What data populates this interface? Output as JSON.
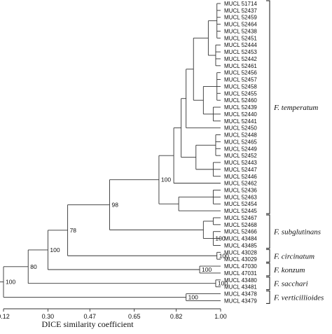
{
  "figure": {
    "axis": {
      "title": "DICE similarity coefficient",
      "ticks": [
        {
          "value": 0.12,
          "label": "0.12"
        },
        {
          "value": 0.3,
          "label": "0.30"
        },
        {
          "value": 0.47,
          "label": "0.47"
        },
        {
          "value": 0.65,
          "label": "0.65"
        },
        {
          "value": 0.82,
          "label": "0.82"
        },
        {
          "value": 1.0,
          "label": "1.00"
        }
      ],
      "range": [
        0.12,
        1.0
      ]
    },
    "leaves": [
      "MUCL 51714",
      "MUCL 52437",
      "MUCL 52459",
      "MUCL 52464",
      "MUCL 52438",
      "MUCL 52451",
      "MUCL 52444",
      "MUCL 52453",
      "MUCL 52442",
      "MUCL 52461",
      "MUCL 52456",
      "MUCL 52457",
      "MUCL 52458",
      "MUCL 52455",
      "MUCL 52460",
      "MUCL 52439",
      "MUCL 52440",
      "MUCL 52441",
      "MUCL 52450",
      "MUCL 52448",
      "MUCL 52465",
      "MUCL 52449",
      "MUCL 52452",
      "MUCL 52443",
      "MUCL 52447",
      "MUCL 52446",
      "MUCL 52462",
      "MUCL 52436",
      "MUCL 52463",
      "MUCL 52454",
      "MUCL 52445",
      "MUCL 52467",
      "MUCL 52468",
      "MUCL 52466",
      "MUCL 43484",
      "MUCL 43485",
      "MUCL 43028",
      "MUCL 43029",
      "MUCL 47030",
      "MUCL 47031",
      "MUCL 43480",
      "MUCL 43481",
      "MUCL 43478",
      "MUCL 43479"
    ],
    "species": [
      {
        "name": "F. temperatum",
        "from": 0,
        "to": 30
      },
      {
        "name": "F. subglutinans",
        "from": 31,
        "to": 35
      },
      {
        "name": "F. circinatum",
        "from": 36,
        "to": 37
      },
      {
        "name": "F. konzum",
        "from": 38,
        "to": 39
      },
      {
        "name": "F. sacchari",
        "from": 40,
        "to": 41
      },
      {
        "name": "F. verticillioides",
        "from": 42,
        "to": 43
      }
    ],
    "bootstrap": [
      {
        "node": "temperatum",
        "label": "100"
      },
      {
        "node": "tem_sub",
        "label": "98"
      },
      {
        "node": "with_circ",
        "label": "78"
      },
      {
        "node": "with_konzum",
        "label": "100"
      },
      {
        "node": "with_sacchari",
        "label": "80"
      },
      {
        "node": "root",
        "label": "100"
      },
      {
        "node": "sub_inner",
        "label": "100"
      },
      {
        "node": "circ",
        "label": "100"
      },
      {
        "node": "konzum",
        "label": "100"
      },
      {
        "node": "sacchari",
        "label": "100"
      },
      {
        "node": "vert",
        "label": "100"
      }
    ],
    "tree": {
      "id": "root",
      "sim": 0.12,
      "children": [
        {
          "id": "with_sacchari",
          "sim": 0.22,
          "children": [
            {
              "id": "with_konzum",
              "sim": 0.3,
              "children": [
                {
                  "id": "with_circ",
                  "sim": 0.38,
                  "children": [
                    {
                      "id": "tem_sub",
                      "sim": 0.55,
                      "children": [
                        {
                          "id": "temperatum",
                          "sim": 0.75,
                          "children": [
                            {
                              "id": "t_a",
                              "sim": 0.81,
                              "children": [
                                {
                                  "id": "t_b",
                                  "sim": 0.84,
                                  "children": [
                                    {
                                      "id": "t_c",
                                      "sim": 0.86,
                                      "children": [
                                        {
                                          "id": "t_d",
                                          "sim": 0.89,
                                          "children": [
                                            {
                                              "id": "t_e",
                                              "sim": 0.95,
                                              "children": [
                                                {
                                                  "id": "t_e1",
                                                  "sim": 0.985,
                                                  "children": [
                                                    {
                                                      "leaf": 0
                                                    },
                                                    {
                                                      "leaf": 1
                                                    },
                                                    {
                                                      "leaf": 2
                                                    },
                                                    {
                                                      "leaf": 3
                                                    },
                                                    {
                                                      "leaf": 4
                                                    },
                                                    {
                                                      "leaf": 5
                                                    }
                                                  ]
                                                },
                                                {
                                                  "id": "t_e2",
                                                  "sim": 0.98,
                                                  "children": [
                                                    {
                                                      "leaf": 6
                                                    },
                                                    {
                                                      "leaf": 7
                                                    },
                                                    {
                                                      "leaf": 8
                                                    },
                                                    {
                                                      "leaf": 9
                                                    }
                                                  ]
                                                }
                                              ]
                                            },
                                            {
                                              "id": "t_f",
                                              "sim": 0.93,
                                              "children": [
                                                {
                                                  "id": "t_f1",
                                                  "sim": 0.985,
                                                  "children": [
                                                    {
                                                      "leaf": 10
                                                    },
                                                    {
                                                      "leaf": 11
                                                    },
                                                    {
                                                      "leaf": 12
                                                    },
                                                    {
                                                      "leaf": 13
                                                    },
                                                    {
                                                      "leaf": 14
                                                    }
                                                  ]
                                                },
                                                {
                                                  "id": "t_f2",
                                                  "sim": 0.97,
                                                  "children": [
                                                    {
                                                      "leaf": 15
                                                    },
                                                    {
                                                      "leaf": 16
                                                    },
                                                    {
                                                      "leaf": 17
                                                    }
                                                  ]
                                                }
                                              ]
                                            }
                                          ]
                                        },
                                        {
                                          "leaf": 18
                                        }
                                      ]
                                    },
                                    {
                                      "id": "t_g",
                                      "sim": 0.9,
                                      "children": [
                                        {
                                          "id": "t_g1",
                                          "sim": 0.98,
                                          "children": [
                                            {
                                              "leaf": 19
                                            },
                                            {
                                              "leaf": 20
                                            },
                                            {
                                              "leaf": 21
                                            },
                                            {
                                              "leaf": 22
                                            }
                                          ]
                                        },
                                        {
                                          "id": "t_g2",
                                          "sim": 0.97,
                                          "children": [
                                            {
                                              "leaf": 23
                                            },
                                            {
                                              "leaf": 24
                                            },
                                            {
                                              "leaf": 25
                                            }
                                          ]
                                        }
                                      ]
                                    }
                                  ]
                                },
                                {
                                  "leaf": 26
                                }
                              ]
                            },
                            {
                              "id": "t_h",
                              "sim": 0.83,
                              "children": [
                                {
                                  "id": "t_h1",
                                  "sim": 0.97,
                                  "children": [
                                    {
                                      "leaf": 27
                                    },
                                    {
                                      "leaf": 28
                                    },
                                    {
                                      "leaf": 29
                                    }
                                  ]
                                },
                                {
                                  "leaf": 30
                                }
                              ]
                            }
                          ]
                        },
                        {
                          "id": "subglutinans",
                          "sim": 0.93,
                          "children": [
                            {
                              "id": "sub_a",
                              "sim": 0.97,
                              "children": [
                                {
                                  "leaf": 31
                                },
                                {
                                  "leaf": 32
                                }
                              ]
                            },
                            {
                              "id": "sub_inner",
                              "sim": 0.97,
                              "children": [
                                {
                                  "leaf": 33
                                },
                                {
                                  "leaf": 34
                                },
                                {
                                  "leaf": 35
                                }
                              ]
                            }
                          ]
                        }
                      ]
                    },
                    {
                      "id": "circ",
                      "sim": 0.985,
                      "children": [
                        {
                          "leaf": 36
                        },
                        {
                          "leaf": 37
                        }
                      ]
                    }
                  ]
                },
                {
                  "id": "konzum",
                  "sim": 0.915,
                  "children": [
                    {
                      "leaf": 38
                    },
                    {
                      "leaf": 39
                    }
                  ]
                }
              ]
            },
            {
              "id": "sacchari",
              "sim": 0.98,
              "children": [
                {
                  "leaf": 40
                },
                {
                  "leaf": 41
                }
              ]
            }
          ]
        },
        {
          "id": "vert",
          "sim": 0.86,
          "children": [
            {
              "leaf": 42
            },
            {
              "leaf": 43
            }
          ]
        }
      ]
    }
  }
}
